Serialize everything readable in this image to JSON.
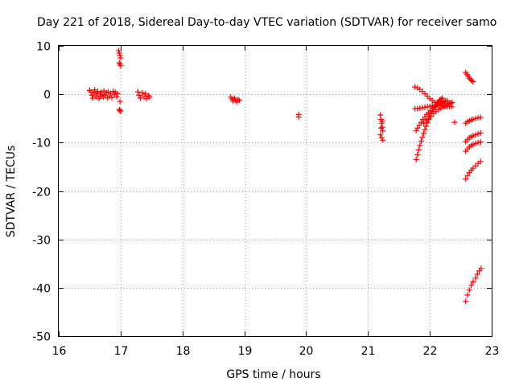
{
  "chart_data": {
    "type": "scatter",
    "title": "Day 221 of 2018, Sidereal Day-to-day VTEC variation (SDTVAR) for receiver samo",
    "xlabel": "GPS time / hours",
    "ylabel": "SDTVAR / TECUs",
    "xlim": [
      16,
      23
    ],
    "ylim": [
      -50,
      10
    ],
    "xticks": [
      16,
      17,
      18,
      19,
      20,
      21,
      22,
      23
    ],
    "yticks": [
      10,
      0,
      -10,
      -20,
      -30,
      -40,
      -50
    ],
    "grid": true,
    "marker": "plus",
    "color": "#ff0000",
    "series": [
      {
        "name": "SDTVAR",
        "points": [
          [
            16.5,
            0.8
          ],
          [
            16.52,
            0.5
          ],
          [
            16.54,
            -0.2
          ],
          [
            16.55,
            -0.8
          ],
          [
            16.57,
            0.3
          ],
          [
            16.58,
            0.9
          ],
          [
            16.6,
            -0.5
          ],
          [
            16.62,
            0.1
          ],
          [
            16.63,
            0.6
          ],
          [
            16.65,
            -0.9
          ],
          [
            16.67,
            -0.3
          ],
          [
            16.68,
            0.4
          ],
          [
            16.7,
            0.0
          ],
          [
            16.72,
            -0.6
          ],
          [
            16.73,
            0.7
          ],
          [
            16.75,
            -0.2
          ],
          [
            16.77,
            0.3
          ],
          [
            16.79,
            -0.8
          ],
          [
            16.8,
            0.5
          ],
          [
            16.82,
            -0.4
          ],
          [
            16.84,
            0.2
          ],
          [
            16.86,
            -0.7
          ],
          [
            16.88,
            0.6
          ],
          [
            16.9,
            -0.1
          ],
          [
            16.92,
            0.4
          ],
          [
            16.94,
            -0.5
          ],
          [
            16.95,
            0.1
          ],
          [
            16.97,
            9.0
          ],
          [
            16.98,
            8.5
          ],
          [
            16.99,
            8.0
          ],
          [
            17.0,
            7.5
          ],
          [
            16.98,
            6.5
          ],
          [
            16.99,
            6.2
          ],
          [
            17.0,
            5.9
          ],
          [
            16.98,
            -3.2
          ],
          [
            16.99,
            -3.4
          ],
          [
            17.0,
            -3.5
          ],
          [
            16.99,
            -1.5
          ],
          [
            17.28,
            0.5
          ],
          [
            17.3,
            -0.2
          ],
          [
            17.32,
            -0.8
          ],
          [
            17.35,
            0.3
          ],
          [
            17.38,
            -0.5
          ],
          [
            17.4,
            0.1
          ],
          [
            17.42,
            -0.9
          ],
          [
            17.45,
            -0.3
          ],
          [
            17.47,
            -0.6
          ],
          [
            18.78,
            -0.6
          ],
          [
            18.8,
            -1.0
          ],
          [
            18.82,
            -1.4
          ],
          [
            18.84,
            -0.8
          ],
          [
            18.86,
            -1.2
          ],
          [
            18.88,
            -1.6
          ],
          [
            18.9,
            -1.1
          ],
          [
            18.92,
            -1.3
          ],
          [
            19.88,
            -4.2
          ],
          [
            19.88,
            -4.7
          ],
          [
            21.2,
            -4.3
          ],
          [
            21.21,
            -5.2
          ],
          [
            21.22,
            -6.0
          ],
          [
            21.23,
            -6.8
          ],
          [
            21.24,
            -7.6
          ],
          [
            21.2,
            -8.4
          ],
          [
            21.22,
            -9.0
          ],
          [
            21.24,
            -9.5
          ],
          [
            21.21,
            -7.0
          ],
          [
            21.23,
            -5.6
          ],
          [
            21.78,
            -13.5
          ],
          [
            21.8,
            -12.5
          ],
          [
            21.82,
            -11.5
          ],
          [
            21.84,
            -10.6
          ],
          [
            21.86,
            -9.7
          ],
          [
            21.88,
            -8.9
          ],
          [
            21.9,
            -8.1
          ],
          [
            21.92,
            -7.3
          ],
          [
            21.94,
            -6.6
          ],
          [
            21.96,
            -5.9
          ],
          [
            21.98,
            -5.2
          ],
          [
            22.0,
            -4.6
          ],
          [
            22.02,
            -4.0
          ],
          [
            22.04,
            -3.5
          ],
          [
            22.06,
            -3.0
          ],
          [
            22.08,
            -2.6
          ],
          [
            22.1,
            -2.2
          ],
          [
            22.12,
            -1.8
          ],
          [
            22.14,
            -1.5
          ],
          [
            22.16,
            -1.2
          ],
          [
            22.18,
            -1.0
          ],
          [
            22.2,
            -0.8
          ],
          [
            21.78,
            -7.5
          ],
          [
            21.8,
            -7.0
          ],
          [
            21.83,
            -6.4
          ],
          [
            21.86,
            -5.8
          ],
          [
            21.89,
            -5.2
          ],
          [
            21.92,
            -4.7
          ],
          [
            21.95,
            -4.2
          ],
          [
            21.98,
            -3.8
          ],
          [
            22.01,
            -3.4
          ],
          [
            22.04,
            -3.0
          ],
          [
            22.07,
            -2.7
          ],
          [
            22.1,
            -2.4
          ],
          [
            22.13,
            -2.1
          ],
          [
            22.16,
            -1.9
          ],
          [
            22.19,
            -1.7
          ],
          [
            22.22,
            -1.5
          ],
          [
            22.25,
            -1.4
          ],
          [
            22.28,
            -1.3
          ],
          [
            21.76,
            -3.0
          ],
          [
            21.8,
            -3.0
          ],
          [
            21.84,
            -2.9
          ],
          [
            21.88,
            -2.8
          ],
          [
            21.92,
            -2.7
          ],
          [
            21.96,
            -2.6
          ],
          [
            22.0,
            -2.5
          ],
          [
            22.04,
            -2.4
          ],
          [
            22.08,
            -2.3
          ],
          [
            22.12,
            -2.2
          ],
          [
            22.16,
            -2.1
          ],
          [
            22.2,
            -2.0
          ],
          [
            22.24,
            -1.9
          ],
          [
            22.28,
            -1.8
          ],
          [
            22.32,
            -1.8
          ],
          [
            22.36,
            -1.7
          ],
          [
            21.76,
            1.5
          ],
          [
            21.8,
            1.3
          ],
          [
            21.84,
            1.0
          ],
          [
            21.88,
            0.6
          ],
          [
            21.92,
            0.1
          ],
          [
            21.96,
            -0.4
          ],
          [
            22.0,
            -0.9
          ],
          [
            22.04,
            -1.3
          ],
          [
            22.08,
            -1.7
          ],
          [
            22.12,
            -2.0
          ],
          [
            22.16,
            -2.2
          ],
          [
            22.2,
            -2.4
          ],
          [
            22.24,
            -2.5
          ],
          [
            22.28,
            -2.6
          ],
          [
            22.32,
            -2.6
          ],
          [
            22.36,
            -2.6
          ],
          [
            21.9,
            -6.0
          ],
          [
            21.94,
            -5.5
          ],
          [
            21.98,
            -5.0
          ],
          [
            22.02,
            -4.5
          ],
          [
            22.06,
            -4.0
          ],
          [
            22.1,
            -3.6
          ],
          [
            22.14,
            -3.2
          ],
          [
            22.18,
            -2.9
          ],
          [
            22.22,
            -2.6
          ],
          [
            22.26,
            -2.3
          ],
          [
            22.3,
            -2.1
          ],
          [
            22.34,
            -1.9
          ],
          [
            22.4,
            -5.8
          ],
          [
            22.58,
            4.5
          ],
          [
            22.6,
            4.1
          ],
          [
            22.62,
            3.7
          ],
          [
            22.64,
            3.3
          ],
          [
            22.66,
            3.0
          ],
          [
            22.68,
            2.8
          ],
          [
            22.7,
            2.6
          ],
          [
            22.58,
            -6.0
          ],
          [
            22.61,
            -5.7
          ],
          [
            22.64,
            -5.5
          ],
          [
            22.67,
            -5.3
          ],
          [
            22.7,
            -5.2
          ],
          [
            22.74,
            -5.0
          ],
          [
            22.78,
            -4.9
          ],
          [
            22.82,
            -4.8
          ],
          [
            22.58,
            -9.8
          ],
          [
            22.61,
            -9.4
          ],
          [
            22.64,
            -9.0
          ],
          [
            22.67,
            -8.8
          ],
          [
            22.7,
            -8.6
          ],
          [
            22.74,
            -8.4
          ],
          [
            22.78,
            -8.2
          ],
          [
            22.82,
            -8.0
          ],
          [
            22.58,
            -11.8
          ],
          [
            22.61,
            -11.3
          ],
          [
            22.64,
            -10.9
          ],
          [
            22.67,
            -10.6
          ],
          [
            22.7,
            -10.4
          ],
          [
            22.74,
            -10.2
          ],
          [
            22.78,
            -10.0
          ],
          [
            22.82,
            -9.9
          ],
          [
            22.58,
            -17.5
          ],
          [
            22.61,
            -16.8
          ],
          [
            22.64,
            -16.2
          ],
          [
            22.67,
            -15.7
          ],
          [
            22.7,
            -15.3
          ],
          [
            22.74,
            -14.8
          ],
          [
            22.78,
            -14.3
          ],
          [
            22.82,
            -13.9
          ],
          [
            22.58,
            -42.8
          ],
          [
            22.61,
            -41.5
          ],
          [
            22.64,
            -40.5
          ],
          [
            22.67,
            -39.5
          ],
          [
            22.7,
            -38.8
          ],
          [
            22.74,
            -38.0
          ],
          [
            22.77,
            -37.2
          ],
          [
            22.8,
            -36.5
          ],
          [
            22.83,
            -36.0
          ]
        ]
      }
    ]
  }
}
